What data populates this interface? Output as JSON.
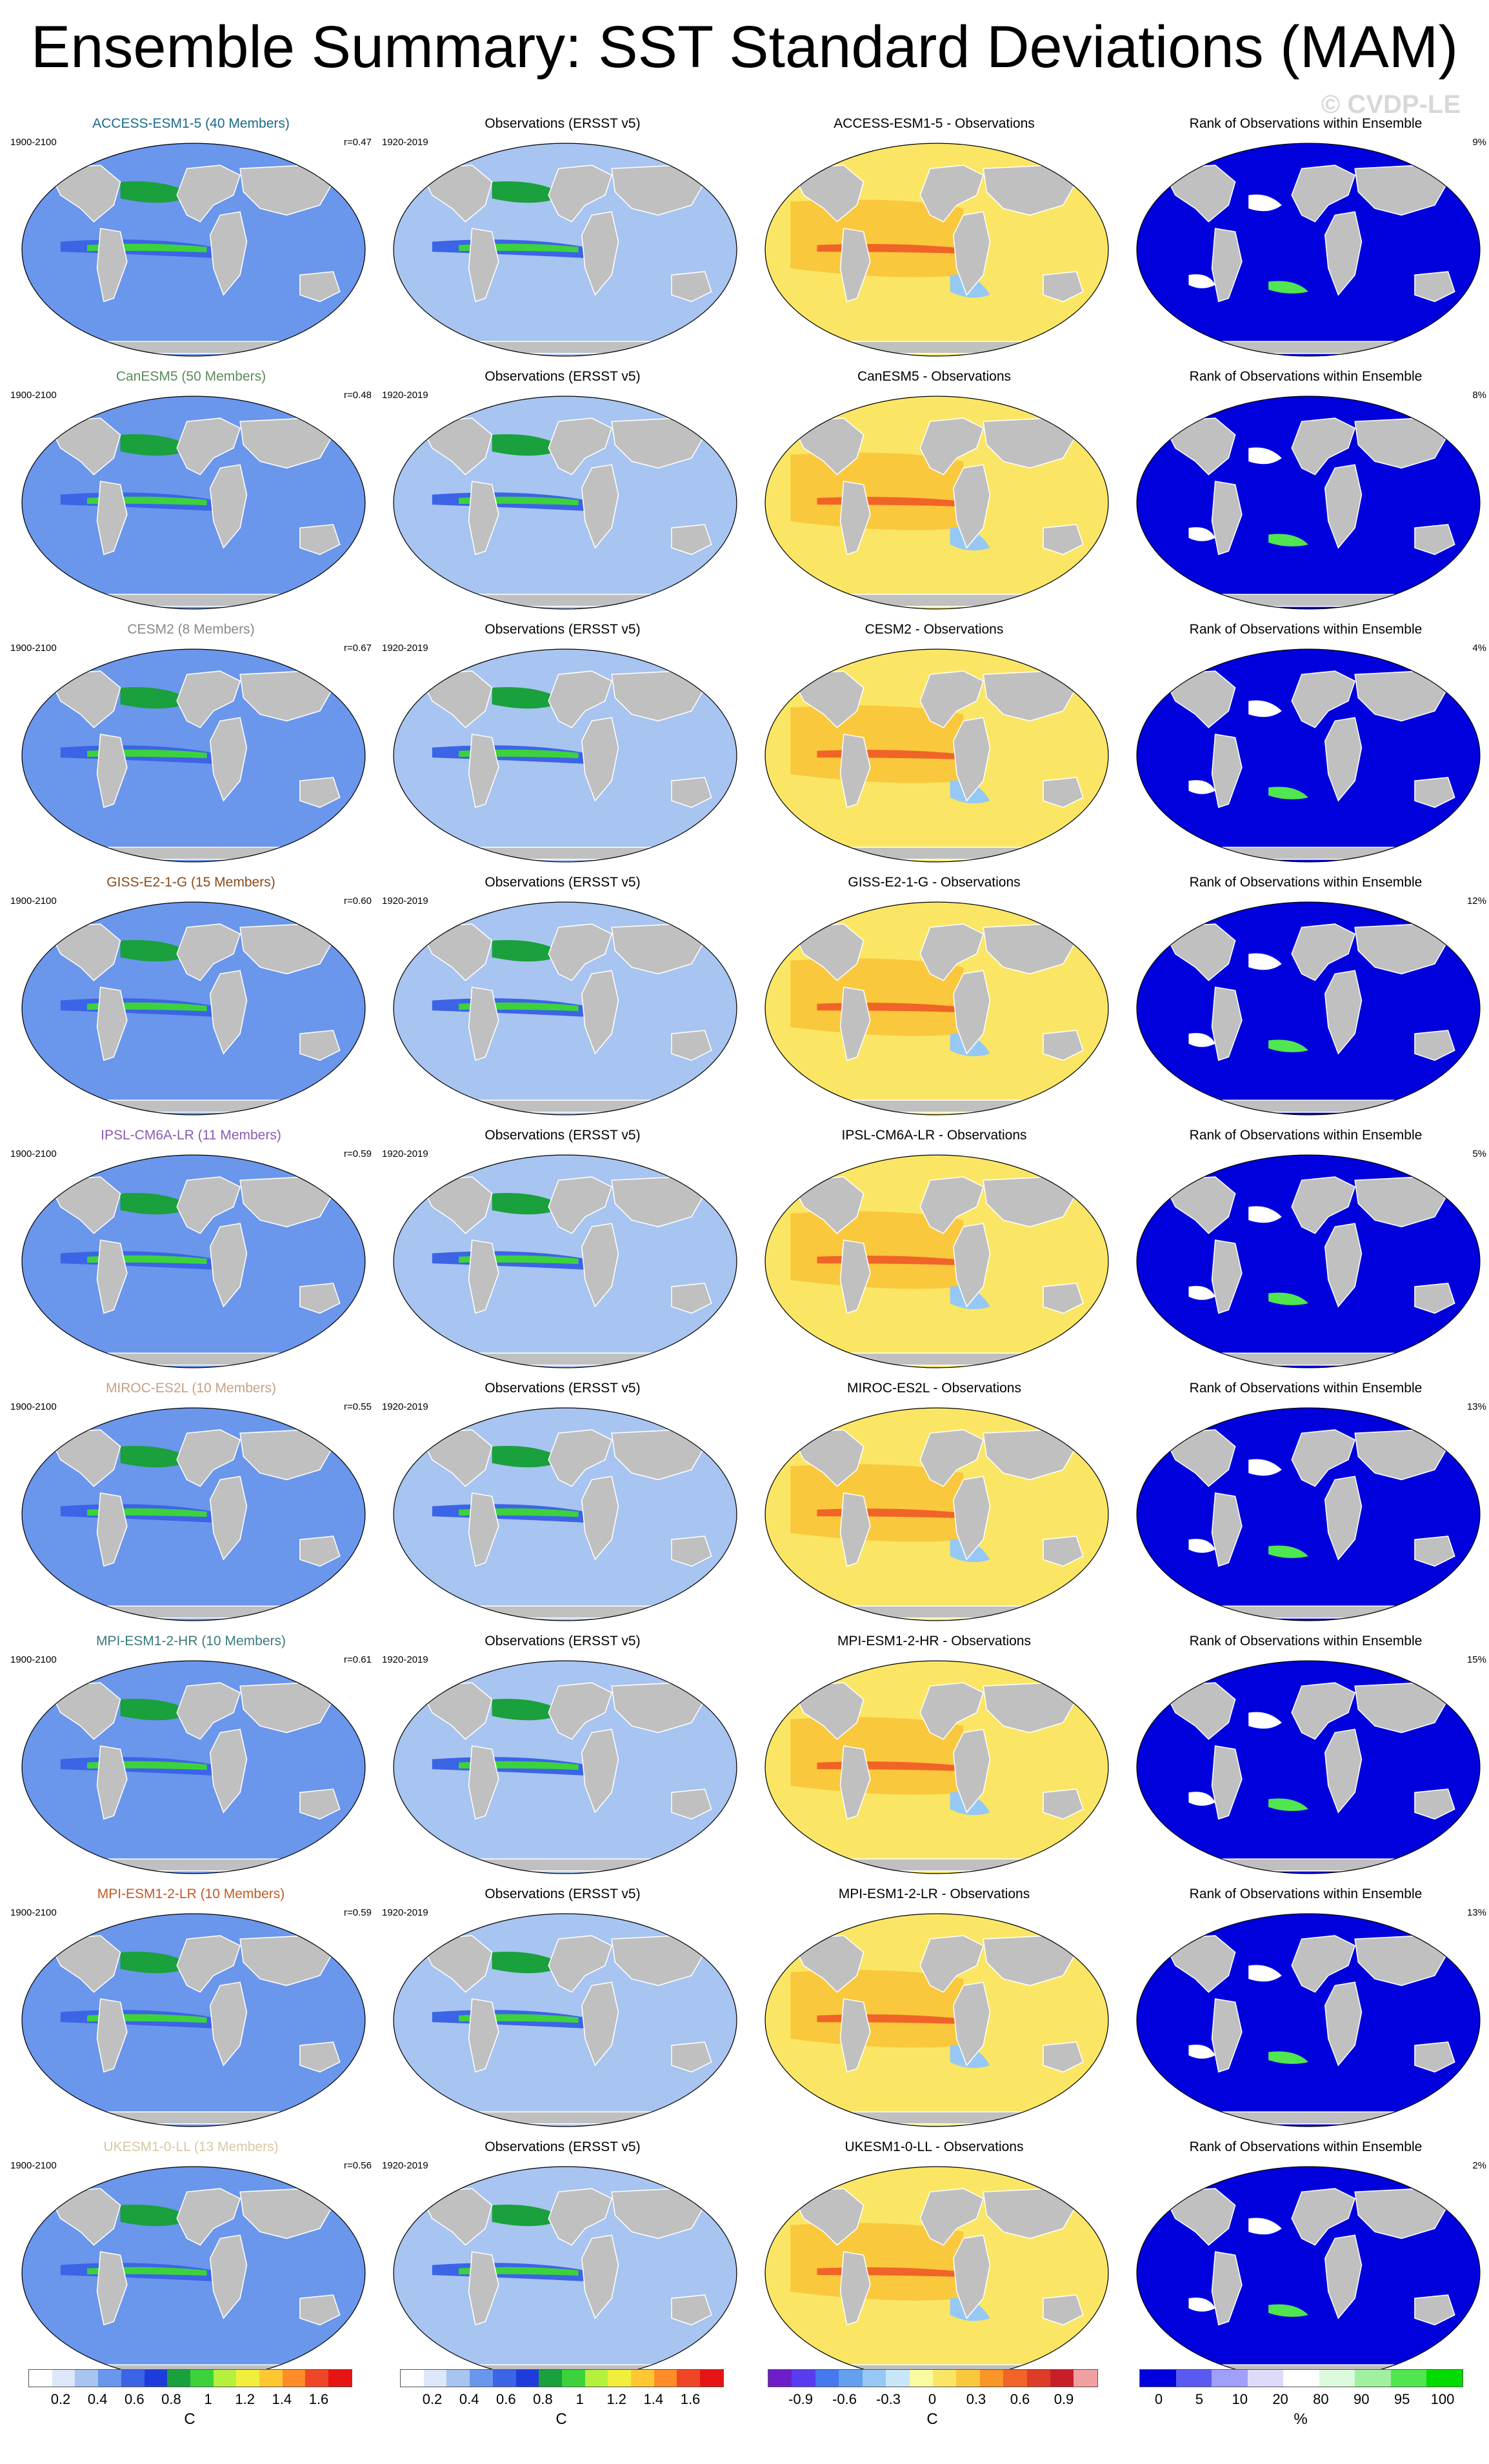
{
  "page_title": "Ensemble Summary: SST Standard Deviations (MAM)",
  "copyright": "© CVDP-LE",
  "columns": [
    {
      "name": "ensemble",
      "palette": "sd"
    },
    {
      "name": "obs",
      "palette": "sd"
    },
    {
      "name": "diff",
      "palette": "diff"
    },
    {
      "name": "rank",
      "palette": "rank"
    }
  ],
  "rows": [
    {
      "model": "ACCESS-ESM1-5 (40 Members)",
      "model_color": "#1a6a8a",
      "period": "1900-2100",
      "r": "r=0.47",
      "obs_title": "Observations (ERSST v5)",
      "obs_period": "1920-2019",
      "diff_title": "ACCESS-ESM1-5 - Observations",
      "rank_title": "Rank of Observations within Ensemble",
      "rank_pct": "9%"
    },
    {
      "model": "CanESM5 (50 Members)",
      "model_color": "#5a8a5a",
      "period": "1900-2100",
      "r": "r=0.48",
      "obs_title": "Observations (ERSST v5)",
      "obs_period": "1920-2019",
      "diff_title": "CanESM5 - Observations",
      "rank_title": "Rank of Observations within Ensemble",
      "rank_pct": "8%"
    },
    {
      "model": "CESM2 (8 Members)",
      "model_color": "#888888",
      "period": "1900-2100",
      "r": "r=0.67",
      "obs_title": "Observations (ERSST v5)",
      "obs_period": "1920-2019",
      "diff_title": "CESM2 - Observations",
      "rank_title": "Rank of Observations within Ensemble",
      "rank_pct": "4%"
    },
    {
      "model": "GISS-E2-1-G (15 Members)",
      "model_color": "#8a4a1a",
      "period": "1900-2100",
      "r": "r=0.60",
      "obs_title": "Observations (ERSST v5)",
      "obs_period": "1920-2019",
      "diff_title": "GISS-E2-1-G - Observations",
      "rank_title": "Rank of Observations within Ensemble",
      "rank_pct": "12%"
    },
    {
      "model": "IPSL-CM6A-LR (11 Members)",
      "model_color": "#8a5ab0",
      "period": "1900-2100",
      "r": "r=0.59",
      "obs_title": "Observations (ERSST v5)",
      "obs_period": "1920-2019",
      "diff_title": "IPSL-CM6A-LR - Observations",
      "rank_title": "Rank of Observations within Ensemble",
      "rank_pct": "5%"
    },
    {
      "model": "MIROC-ES2L (10 Members)",
      "model_color": "#c8a080",
      "period": "1900-2100",
      "r": "r=0.55",
      "obs_title": "Observations (ERSST v5)",
      "obs_period": "1920-2019",
      "diff_title": "MIROC-ES2L - Observations",
      "rank_title": "Rank of Observations within Ensemble",
      "rank_pct": "13%"
    },
    {
      "model": "MPI-ESM1-2-HR (10 Members)",
      "model_color": "#3a7a7a",
      "period": "1900-2100",
      "r": "r=0.61",
      "obs_title": "Observations (ERSST v5)",
      "obs_period": "1920-2019",
      "diff_title": "MPI-ESM1-2-HR - Observations",
      "rank_title": "Rank of Observations within Ensemble",
      "rank_pct": "15%"
    },
    {
      "model": "MPI-ESM1-2-LR (10 Members)",
      "model_color": "#c05a2a",
      "period": "1900-2100",
      "r": "r=0.59",
      "obs_title": "Observations (ERSST v5)",
      "obs_period": "1920-2019",
      "diff_title": "MPI-ESM1-2-LR - Observations",
      "rank_title": "Rank of Observations within Ensemble",
      "rank_pct": "13%"
    },
    {
      "model": "UKESM1-0-LL (13 Members)",
      "model_color": "#d8c8a0",
      "period": "1900-2100",
      "r": "r=0.56",
      "obs_title": "Observations (ERSST v5)",
      "obs_period": "1920-2019",
      "diff_title": "UKESM1-0-LL - Observations",
      "rank_title": "Rank of Observations within Ensemble",
      "rank_pct": "2%"
    }
  ],
  "colorbars": [
    {
      "name": "sd",
      "unit": "C",
      "colors": [
        "#ffffff",
        "#dce8fa",
        "#a8c4f0",
        "#6a96ec",
        "#3c64e6",
        "#1e3cdc",
        "#1aa03c",
        "#3cd23c",
        "#b4f03c",
        "#f0f03c",
        "#ffc832",
        "#ff8c28",
        "#f04628",
        "#e61414"
      ],
      "ticks": [
        "0.2",
        "0.4",
        "0.6",
        "0.8",
        "1",
        "1.2",
        "1.4",
        "1.6"
      ]
    },
    {
      "name": "sd",
      "unit": "C",
      "colors": [
        "#ffffff",
        "#dce8fa",
        "#a8c4f0",
        "#6a96ec",
        "#3c64e6",
        "#1e3cdc",
        "#1aa03c",
        "#3cd23c",
        "#b4f03c",
        "#f0f03c",
        "#ffc832",
        "#ff8c28",
        "#f04628",
        "#e61414"
      ],
      "ticks": [
        "0.2",
        "0.4",
        "0.6",
        "0.8",
        "1",
        "1.2",
        "1.4",
        "1.6"
      ]
    },
    {
      "name": "diff",
      "unit": "C",
      "colors": [
        "#6e1ec8",
        "#5a3cf0",
        "#4678f0",
        "#64a0f0",
        "#96c8f5",
        "#c8e6fa",
        "#fafaa0",
        "#fae664",
        "#fac83c",
        "#fa9628",
        "#f06428",
        "#dc3c28",
        "#c81e28",
        "#f0a0a0"
      ],
      "ticks": [
        "-0.9",
        "-0.6",
        "-0.3",
        "0",
        "0.3",
        "0.6",
        "0.9"
      ]
    },
    {
      "name": "rank",
      "unit": "%",
      "colors": [
        "#0000dc",
        "#5a5af0",
        "#a0a0fa",
        "#dcdcfa",
        "#ffffff",
        "#dcfadc",
        "#a0f0a0",
        "#50e650",
        "#00dc00"
      ],
      "ticks": [
        "0",
        "5",
        "10",
        "20",
        "80",
        "90",
        "95",
        "100"
      ]
    }
  ]
}
